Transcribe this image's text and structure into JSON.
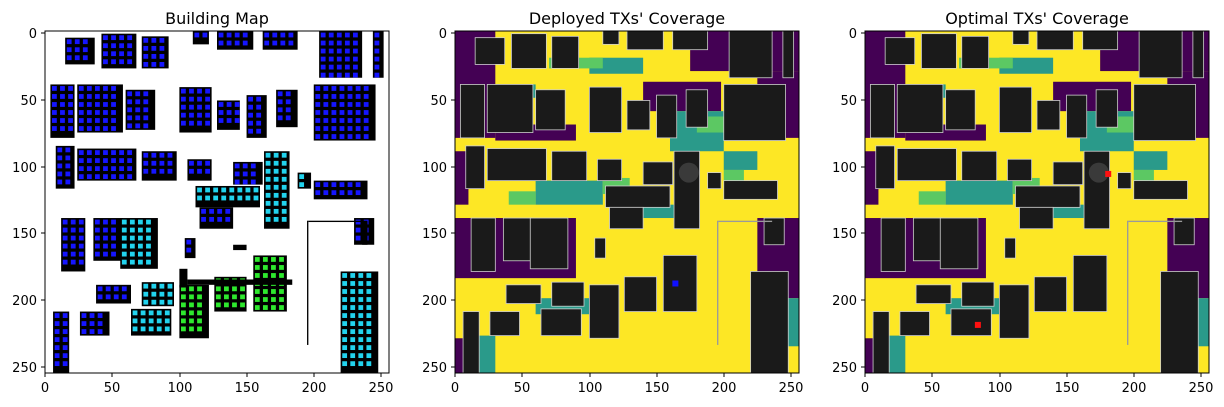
{
  "chart_data": [
    {
      "type": "heatmap",
      "title": "Building Map",
      "xlabel": "",
      "ylabel": "",
      "xlim": [
        0,
        256
      ],
      "ylim": [
        256,
        0
      ],
      "xticks": [
        "0",
        "50",
        "100",
        "150",
        "200",
        "250"
      ],
      "yticks": [
        "0",
        "50",
        "100",
        "150",
        "200",
        "250"
      ],
      "background_color": "#ffffff",
      "building_color": "#000000",
      "marker_colors": {
        "blue": "#1515ff",
        "cyan": "#22d3ee",
        "green": "#2ee82e"
      },
      "buildings": [
        [
          15,
          5,
          37,
          25,
          "blue"
        ],
        [
          42,
          2,
          68,
          28,
          "blue"
        ],
        [
          72,
          4,
          92,
          28,
          "blue"
        ],
        [
          110,
          0,
          122,
          10,
          "blue"
        ],
        [
          128,
          0,
          155,
          14,
          "blue"
        ],
        [
          162,
          0,
          188,
          14,
          "blue"
        ],
        [
          204,
          0,
          236,
          35,
          "blue"
        ],
        [
          244,
          0,
          252,
          35,
          "blue"
        ],
        [
          4,
          40,
          22,
          80,
          "blue"
        ],
        [
          24,
          40,
          58,
          76,
          "blue"
        ],
        [
          60,
          44,
          82,
          74,
          "blue"
        ],
        [
          100,
          42,
          124,
          76,
          "blue"
        ],
        [
          128,
          52,
          145,
          74,
          "blue"
        ],
        [
          150,
          48,
          165,
          80,
          "blue"
        ],
        [
          172,
          44,
          188,
          72,
          "blue"
        ],
        [
          200,
          40,
          246,
          82,
          "blue"
        ],
        [
          8,
          86,
          22,
          118,
          "blue"
        ],
        [
          24,
          88,
          68,
          112,
          "blue"
        ],
        [
          72,
          90,
          98,
          112,
          "blue"
        ],
        [
          106,
          96,
          124,
          112,
          "blue"
        ],
        [
          140,
          98,
          162,
          115,
          "blue"
        ],
        [
          163,
          90,
          182,
          148,
          "cyan"
        ],
        [
          188,
          106,
          198,
          118,
          "cyan"
        ],
        [
          200,
          112,
          240,
          126,
          "blue"
        ],
        [
          112,
          116,
          160,
          132,
          "cyan"
        ],
        [
          12,
          140,
          30,
          180,
          "blue"
        ],
        [
          36,
          140,
          58,
          172,
          "blue"
        ],
        [
          56,
          140,
          84,
          178,
          "cyan"
        ],
        [
          104,
          155,
          112,
          170,
          "blue"
        ],
        [
          115,
          132,
          140,
          148,
          "blue"
        ],
        [
          38,
          190,
          64,
          204,
          "blue"
        ],
        [
          72,
          188,
          96,
          206,
          "cyan"
        ],
        [
          126,
          184,
          150,
          210,
          "green"
        ],
        [
          155,
          168,
          180,
          210,
          "green"
        ],
        [
          100,
          190,
          122,
          230,
          "green"
        ],
        [
          64,
          208,
          94,
          228,
          "cyan"
        ],
        [
          6,
          210,
          18,
          256,
          "blue"
        ],
        [
          26,
          210,
          48,
          228,
          "blue"
        ],
        [
          230,
          140,
          245,
          160,
          "blue"
        ],
        [
          220,
          180,
          248,
          256,
          "cyan"
        ]
      ]
    },
    {
      "type": "heatmap",
      "title": "Deployed TXs' Coverage",
      "xlabel": "",
      "ylabel": "",
      "xlim": [
        0,
        256
      ],
      "ylim": [
        256,
        0
      ],
      "xticks": [
        "0",
        "50",
        "100",
        "150",
        "200",
        "250"
      ],
      "yticks": [
        "0",
        "50",
        "100",
        "150",
        "200",
        "250"
      ],
      "colormap": {
        "no_coverage": "#440154",
        "low": "#2a9a8a",
        "mid": "#5cc863",
        "high": "#fde725",
        "building": "#1a1a1a"
      },
      "tx_color": "#1010ff",
      "tx_positions": [
        [
          164,
          189
        ]
      ]
    },
    {
      "type": "heatmap",
      "title": "Optimal TXs' Coverage",
      "xlabel": "",
      "ylabel": "",
      "xlim": [
        0,
        256
      ],
      "ylim": [
        256,
        0
      ],
      "xticks": [
        "0",
        "50",
        "100",
        "150",
        "200",
        "250"
      ],
      "yticks": [
        "0",
        "50",
        "100",
        "150",
        "200",
        "250"
      ],
      "colormap": {
        "no_coverage": "#440154",
        "low": "#2a9a8a",
        "mid": "#5cc863",
        "high": "#fde725",
        "building": "#1a1a1a"
      },
      "tx_color": "#ff1010",
      "tx_positions": [
        [
          181,
          107
        ],
        [
          84,
          220
        ]
      ]
    }
  ]
}
